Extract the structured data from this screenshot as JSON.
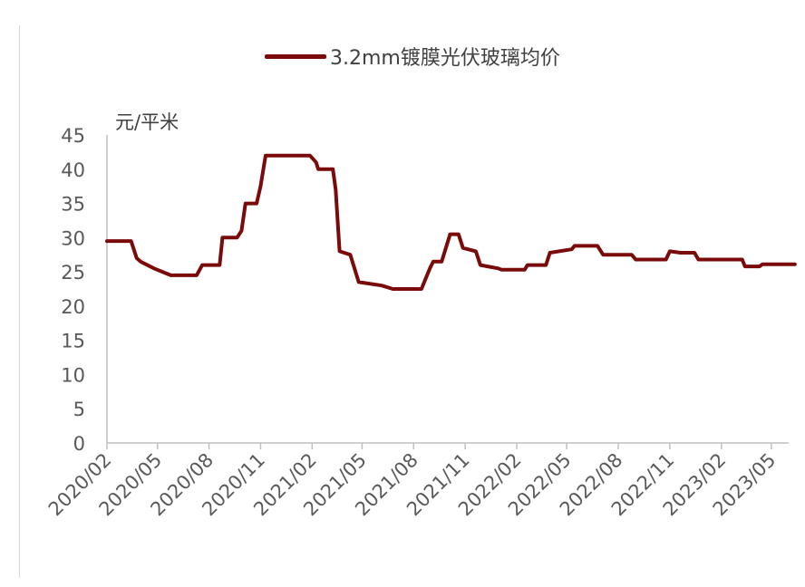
{
  "chart_data": {
    "type": "line",
    "y_unit_label": "元/平米",
    "ylim": [
      0,
      45
    ],
    "y_ticks": [
      "0",
      "5",
      "10",
      "15",
      "20",
      "25",
      "30",
      "35",
      "40",
      "45"
    ],
    "x_tick_labels": [
      "2020/02",
      "2020/05",
      "2020/08",
      "2020/11",
      "2021/02",
      "2021/05",
      "2021/08",
      "2021/11",
      "2022/02",
      "2022/05",
      "2022/08",
      "2022/11",
      "2023/02",
      "2023/05"
    ],
    "x_range": [
      "2020/02",
      "2023/06"
    ],
    "grid": false,
    "legend_position": "top-center",
    "series": [
      {
        "name": "3.2mm镀膜光伏玻璃均价",
        "color": "#7b0a0a",
        "points": [
          [
            "2020-02-01",
            29.5
          ],
          [
            "2020-03-15",
            29.5
          ],
          [
            "2020-03-25",
            27.0
          ],
          [
            "2020-04-01",
            26.5
          ],
          [
            "2020-04-25",
            25.5
          ],
          [
            "2020-05-10",
            25.0
          ],
          [
            "2020-05-25",
            24.5
          ],
          [
            "2020-07-10",
            24.5
          ],
          [
            "2020-07-20",
            26.0
          ],
          [
            "2020-08-20",
            26.0
          ],
          [
            "2020-08-25",
            30.0
          ],
          [
            "2020-09-20",
            30.0
          ],
          [
            "2020-09-28",
            31.0
          ],
          [
            "2020-10-05",
            35.0
          ],
          [
            "2020-10-25",
            35.0
          ],
          [
            "2020-11-01",
            37.5
          ],
          [
            "2020-11-10",
            42.0
          ],
          [
            "2021-01-28",
            42.0
          ],
          [
            "2021-02-08",
            41.0
          ],
          [
            "2021-02-12",
            40.0
          ],
          [
            "2021-03-10",
            40.0
          ],
          [
            "2021-03-15",
            37.0
          ],
          [
            "2021-03-22",
            28.0
          ],
          [
            "2021-04-10",
            27.5
          ],
          [
            "2021-04-25",
            23.5
          ],
          [
            "2021-06-05",
            23.0
          ],
          [
            "2021-06-25",
            22.5
          ],
          [
            "2021-08-15",
            22.5
          ],
          [
            "2021-08-30",
            25.5
          ],
          [
            "2021-09-05",
            26.5
          ],
          [
            "2021-09-20",
            26.5
          ],
          [
            "2021-10-05",
            30.5
          ],
          [
            "2021-10-20",
            30.5
          ],
          [
            "2021-10-28",
            28.5
          ],
          [
            "2021-11-20",
            28.0
          ],
          [
            "2021-11-28",
            26.0
          ],
          [
            "2021-12-30",
            25.5
          ],
          [
            "2022-01-05",
            25.3
          ],
          [
            "2022-02-15",
            25.3
          ],
          [
            "2022-02-20",
            26.0
          ],
          [
            "2022-03-25",
            26.0
          ],
          [
            "2022-04-01",
            27.8
          ],
          [
            "2022-05-10",
            28.3
          ],
          [
            "2022-05-15",
            28.8
          ],
          [
            "2022-06-25",
            28.8
          ],
          [
            "2022-07-05",
            27.5
          ],
          [
            "2022-08-25",
            27.5
          ],
          [
            "2022-09-01",
            26.8
          ],
          [
            "2022-10-25",
            26.8
          ],
          [
            "2022-11-01",
            28.0
          ],
          [
            "2022-11-20",
            27.8
          ],
          [
            "2022-12-15",
            27.8
          ],
          [
            "2022-12-22",
            26.8
          ],
          [
            "2023-03-10",
            26.8
          ],
          [
            "2023-03-15",
            25.8
          ],
          [
            "2023-04-10",
            25.8
          ],
          [
            "2023-04-15",
            26.1
          ],
          [
            "2023-06-12",
            26.1
          ]
        ]
      }
    ]
  }
}
